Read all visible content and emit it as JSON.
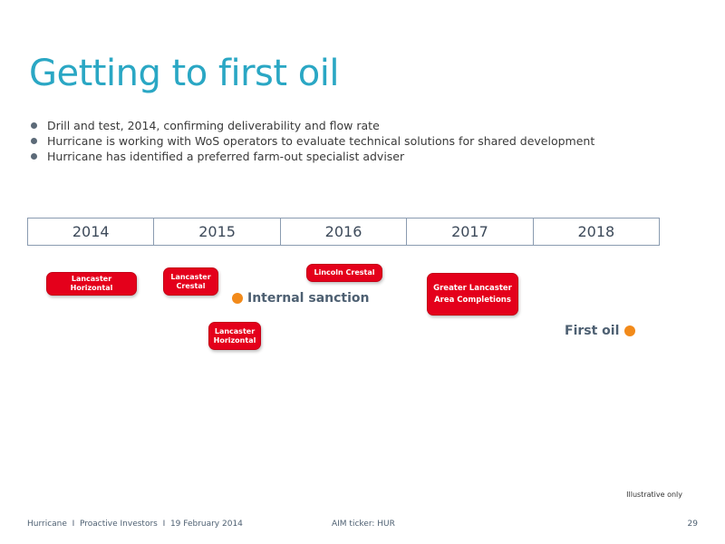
{
  "title": "Getting to first oil",
  "bullets": [
    "Drill and test, 2014, confirming deliverability and flow rate",
    "Hurricane is working with WoS operators to evaluate technical solutions for shared development",
    "Hurricane has identified a preferred farm-out specialist adviser"
  ],
  "timeline": {
    "years": [
      "2014",
      "2015",
      "2016",
      "2017",
      "2018"
    ],
    "events": [
      {
        "label": "Lancaster\nHorizontal",
        "year_position": 2014.3
      },
      {
        "label": "Lancaster\nCrestal",
        "year_position": 2015.3
      },
      {
        "label": "Lancaster\nHorizontal",
        "year_position": 2015.65
      },
      {
        "label": "Lincoln Crestal",
        "year_position": 2016.3
      },
      {
        "label": "Greater Lancaster\nArea Completions",
        "year_position": 2017.3
      }
    ],
    "milestones": {
      "internal_sanction": "Internal sanction",
      "first_oil": "First oil"
    },
    "milestone_color": "#f28a1a",
    "event_color": "#e4001b"
  },
  "note": "Illustrative only",
  "footer": {
    "left": "Hurricane  I  Proactive Investors  I  19 February 2014",
    "ticker": "AIM ticker: HUR",
    "page": "29"
  }
}
